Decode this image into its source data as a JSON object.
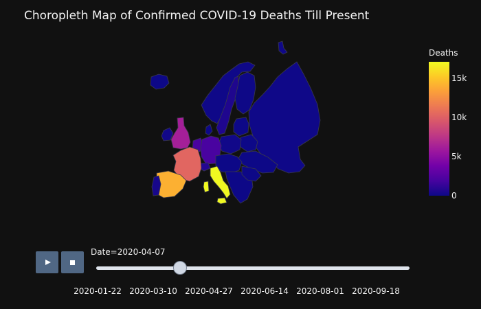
{
  "title": "Choropleth Map of Confirmed COVID-19 Deaths Till Present",
  "colorbar": {
    "title": "Deaths",
    "ticks": [
      {
        "label": "15k",
        "value": 15000
      },
      {
        "label": "10k",
        "value": 10000
      },
      {
        "label": "5k",
        "value": 5000
      },
      {
        "label": "0",
        "value": 0
      }
    ],
    "range": [
      0,
      17100
    ],
    "colors": [
      "#0d0887",
      "#46039f",
      "#7201a8",
      "#9c179e",
      "#bd3786",
      "#d8576b",
      "#ed7953",
      "#fb9f3a",
      "#fdca26",
      "#f0f921"
    ]
  },
  "animation": {
    "play_icon": "play-icon",
    "stop_icon": "stop-icon",
    "current_label": "Date=2020-04-07",
    "slider_labels": [
      "2020-01-22",
      "2020-03-10",
      "2020-04-27",
      "2020-06-14",
      "2020-08-01",
      "2020-09-18"
    ],
    "progress": 0.26
  },
  "map_data": {
    "type": "choropleth",
    "region": "Europe",
    "date": "2020-04-07",
    "regions": [
      {
        "name": "Italy",
        "deaths": 17127
      },
      {
        "name": "Spain",
        "deaths": 14045
      },
      {
        "name": "France",
        "deaths": 10328
      },
      {
        "name": "United Kingdom",
        "deaths": 6159
      },
      {
        "name": "Netherlands",
        "deaths": 2101
      },
      {
        "name": "Belgium",
        "deaths": 2035
      },
      {
        "name": "Germany",
        "deaths": 2016
      },
      {
        "name": "Sweden",
        "deaths": 591
      },
      {
        "name": "Switzerland",
        "deaths": 765
      },
      {
        "name": "Portugal",
        "deaths": 345
      },
      {
        "name": "Russia",
        "deaths": 58
      },
      {
        "name": "Norway",
        "deaths": 76
      },
      {
        "name": "Finland",
        "deaths": 34
      },
      {
        "name": "Iceland",
        "deaths": 6
      },
      {
        "name": "Poland",
        "deaths": 129
      },
      {
        "name": "Ireland",
        "deaths": 174
      }
    ]
  }
}
